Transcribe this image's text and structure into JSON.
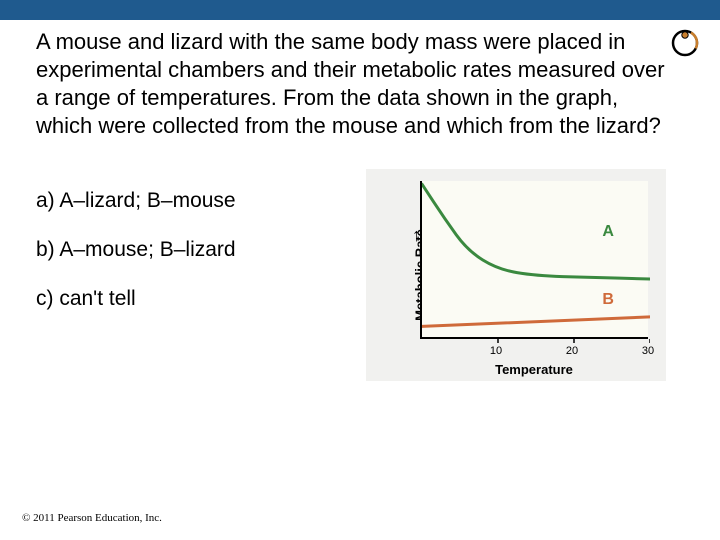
{
  "topbar_color": "#1f5a8e",
  "question_text": "A mouse and lizard with the same body mass were placed in experimental chambers and their metabolic rates measured over a range of temperatures. From the data shown in the graph, which were collected from the mouse and which from the lizard?",
  "options": {
    "a": "a)  A–lizard; B–mouse",
    "b": "b)  A–mouse; B–lizard",
    "c": "c)  can't tell"
  },
  "chart": {
    "type": "line",
    "background_color": "#f1f1ef",
    "plot_background": "#fbfbf4",
    "xlabel": "Temperature",
    "ylabel": "Metabolic Rate",
    "xlim": [
      0,
      30
    ],
    "xticks": [
      10,
      20,
      30
    ],
    "series": {
      "A": {
        "color": "#3a893f",
        "line_width": 3,
        "label": "A",
        "label_pos": {
          "x_frac": 0.8,
          "y_frac": 0.32
        },
        "points": [
          {
            "x": 0,
            "y_frac": 0.02
          },
          {
            "x": 3,
            "y_frac": 0.24
          },
          {
            "x": 6,
            "y_frac": 0.44
          },
          {
            "x": 10,
            "y_frac": 0.56
          },
          {
            "x": 15,
            "y_frac": 0.6
          },
          {
            "x": 22,
            "y_frac": 0.61
          },
          {
            "x": 30,
            "y_frac": 0.62
          }
        ]
      },
      "B": {
        "color": "#cf6a3a",
        "line_width": 3,
        "label": "B",
        "label_pos": {
          "x_frac": 0.8,
          "y_frac": 0.75
        },
        "points": [
          {
            "x": 0,
            "y_frac": 0.92
          },
          {
            "x": 30,
            "y_frac": 0.86
          }
        ]
      }
    }
  },
  "copyright": "© 2011 Pearson Education, Inc.",
  "corner_icon": {
    "ring_color": "#000000",
    "dot_color": "#c97f2e"
  }
}
